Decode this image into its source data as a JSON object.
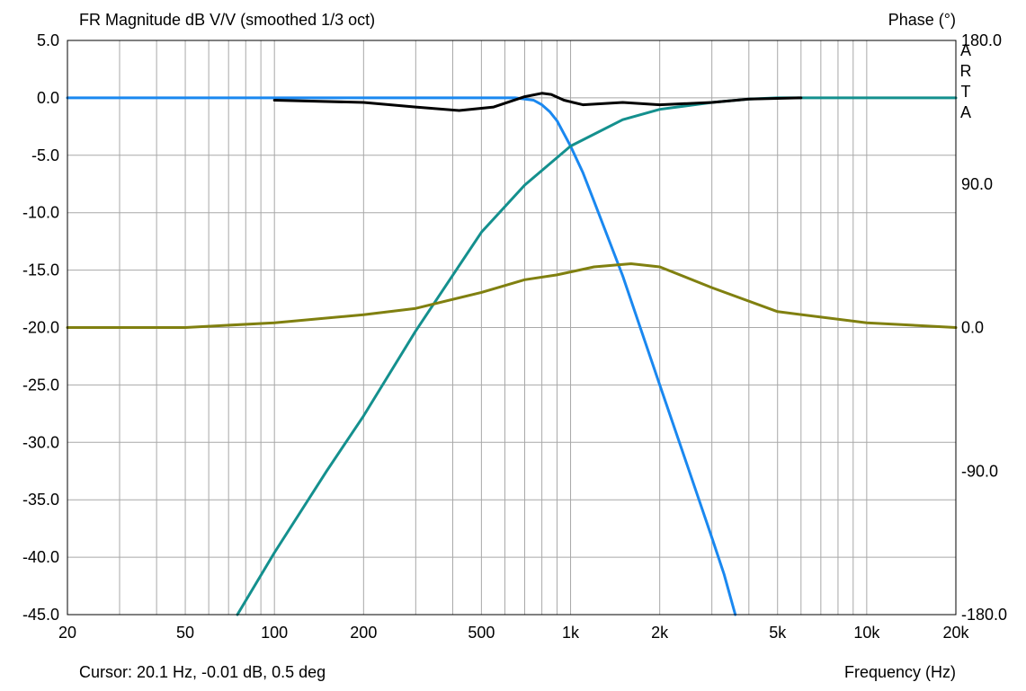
{
  "chart_data": {
    "type": "line",
    "title": "FR Magnitude dB V/V (smoothed 1/3 oct)",
    "right_axis_title": "Phase (°)",
    "brand_text": "ARTA",
    "xlabel": "Frequency (Hz)",
    "cursor_readout": "Cursor: 20.1 Hz, -0.01 dB, 0.5 deg",
    "x_scale": "log",
    "xlim": [
      20,
      20000
    ],
    "ylim": [
      -45,
      5
    ],
    "y2lim": [
      -180,
      180
    ],
    "grid": true,
    "x_ticks": [
      {
        "value": 20,
        "label": "20"
      },
      {
        "value": 50,
        "label": "50"
      },
      {
        "value": 100,
        "label": "100"
      },
      {
        "value": 200,
        "label": "200"
      },
      {
        "value": 500,
        "label": "500"
      },
      {
        "value": 1000,
        "label": "1k"
      },
      {
        "value": 2000,
        "label": "2k"
      },
      {
        "value": 5000,
        "label": "5k"
      },
      {
        "value": 10000,
        "label": "10k"
      },
      {
        "value": 20000,
        "label": "20k"
      }
    ],
    "y_ticks": [
      {
        "value": 5,
        "label": "5.0"
      },
      {
        "value": 0,
        "label": "0.0"
      },
      {
        "value": -5,
        "label": "-5.0"
      },
      {
        "value": -10,
        "label": "-10.0"
      },
      {
        "value": -15,
        "label": "-15.0"
      },
      {
        "value": -20,
        "label": "-20.0"
      },
      {
        "value": -25,
        "label": "-25.0"
      },
      {
        "value": -30,
        "label": "-30.0"
      },
      {
        "value": -35,
        "label": "-35.0"
      },
      {
        "value": -40,
        "label": "-40.0"
      },
      {
        "value": -45,
        "label": "-45.0"
      }
    ],
    "y2_ticks": [
      {
        "value": 180,
        "label": "180.0"
      },
      {
        "value": 90,
        "label": "90.0"
      },
      {
        "value": 0,
        "label": "0.0"
      },
      {
        "value": -90,
        "label": "-90.0"
      },
      {
        "value": -180,
        "label": "-180.0"
      }
    ],
    "series": [
      {
        "axis": "y",
        "color": "#1a88f0",
        "x": [
          20,
          100,
          500,
          650,
          750,
          800,
          850,
          900,
          1000,
          1100,
          1200,
          1500,
          2000,
          2500,
          3000,
          3300,
          3600
        ],
        "y": [
          0,
          0,
          0,
          0,
          -0.2,
          -0.6,
          -1.2,
          -2,
          -4.2,
          -6.5,
          -9,
          -15.5,
          -25,
          -32.3,
          -38.3,
          -41.5,
          -45
        ]
      },
      {
        "axis": "y",
        "color": "#14908e",
        "x": [
          75,
          100,
          150,
          200,
          300,
          500,
          700,
          1000,
          1500,
          2000,
          3000,
          4000,
          5000,
          10000,
          20000
        ],
        "y": [
          -45,
          -39.6,
          -32.5,
          -27.7,
          -20.3,
          -11.7,
          -7.6,
          -4.2,
          -1.9,
          -1,
          -0.4,
          -0.1,
          0,
          0,
          0
        ]
      },
      {
        "axis": "y",
        "color": "#000000",
        "x": [
          100,
          200,
          300,
          420,
          550,
          700,
          800,
          860,
          950,
          1100,
          1500,
          2000,
          3000,
          4000,
          6000
        ],
        "y": [
          -0.2,
          -0.4,
          -0.8,
          -1.1,
          -0.8,
          0.1,
          0.4,
          0.3,
          -0.2,
          -0.6,
          -0.4,
          -0.6,
          -0.4,
          -0.1,
          0
        ]
      },
      {
        "axis": "y2",
        "color": "#808010",
        "x": [
          20,
          50,
          100,
          200,
          300,
          500,
          700,
          900,
          1200,
          1600,
          2000,
          3000,
          5000,
          10000,
          20000
        ],
        "y": [
          0,
          0,
          3,
          8,
          12,
          22,
          30,
          33,
          38,
          40,
          38,
          25,
          10,
          3,
          0
        ]
      }
    ]
  }
}
